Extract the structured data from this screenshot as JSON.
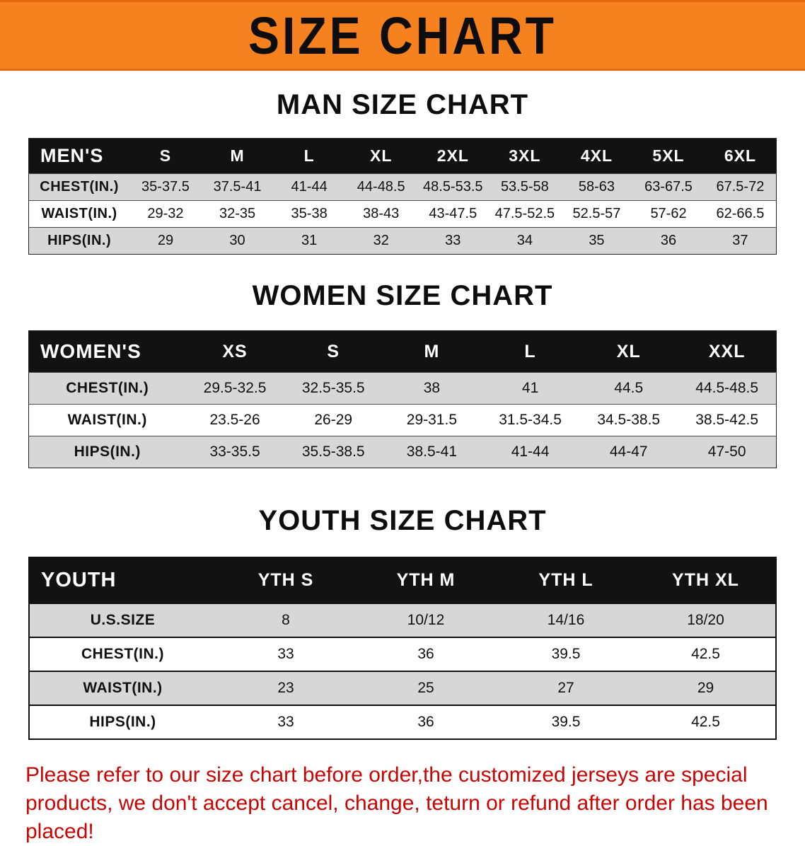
{
  "banner": {
    "title": "SIZE CHART",
    "bg_color": "#F6821F"
  },
  "chart_data": [
    {
      "type": "table",
      "title": "MAN SIZE CHART",
      "columns": [
        "MEN'S",
        "S",
        "M",
        "L",
        "XL",
        "2XL",
        "3XL",
        "4XL",
        "5XL",
        "6XL"
      ],
      "rows": [
        [
          "CHEST(IN.)",
          "35-37.5",
          "37.5-41",
          "41-44",
          "44-48.5",
          "48.5-53.5",
          "53.5-58",
          "58-63",
          "63-67.5",
          "67.5-72"
        ],
        [
          "WAIST(IN.)",
          "29-32",
          "32-35",
          "35-38",
          "38-43",
          "43-47.5",
          "47.5-52.5",
          "52.5-57",
          "57-62",
          "62-66.5"
        ],
        [
          "HIPS(IN.)",
          "29",
          "30",
          "31",
          "32",
          "33",
          "34",
          "35",
          "36",
          "37"
        ]
      ]
    },
    {
      "type": "table",
      "title": "WOMEN SIZE CHART",
      "columns": [
        "WOMEN'S",
        "XS",
        "S",
        "M",
        "L",
        "XL",
        "XXL"
      ],
      "rows": [
        [
          "CHEST(IN.)",
          "29.5-32.5",
          "32.5-35.5",
          "38",
          "41",
          "44.5",
          "44.5-48.5"
        ],
        [
          "WAIST(IN.)",
          "23.5-26",
          "26-29",
          "29-31.5",
          "31.5-34.5",
          "34.5-38.5",
          "38.5-42.5"
        ],
        [
          "HIPS(IN.)",
          "33-35.5",
          "35.5-38.5",
          "38.5-41",
          "41-44",
          "44-47",
          "47-50"
        ]
      ]
    },
    {
      "type": "table",
      "title": "YOUTH SIZE CHART",
      "columns": [
        "YOUTH",
        "YTH S",
        "YTH M",
        "YTH L",
        "YTH XL"
      ],
      "rows": [
        [
          "U.S.SIZE",
          "8",
          "10/12",
          "14/16",
          "18/20"
        ],
        [
          "CHEST(IN.)",
          "33",
          "36",
          "39.5",
          "42.5"
        ],
        [
          "WAIST(IN.)",
          "23",
          "25",
          "27",
          "29"
        ],
        [
          "HIPS(IN.)",
          "33",
          "36",
          "39.5",
          "42.5"
        ]
      ]
    }
  ],
  "footer": {
    "text": "Please refer to our size chart before order,the customized jerseys are special products, we don't accept cancel, change, teturn or refund after order has been placed!",
    "color": "#c80505"
  }
}
